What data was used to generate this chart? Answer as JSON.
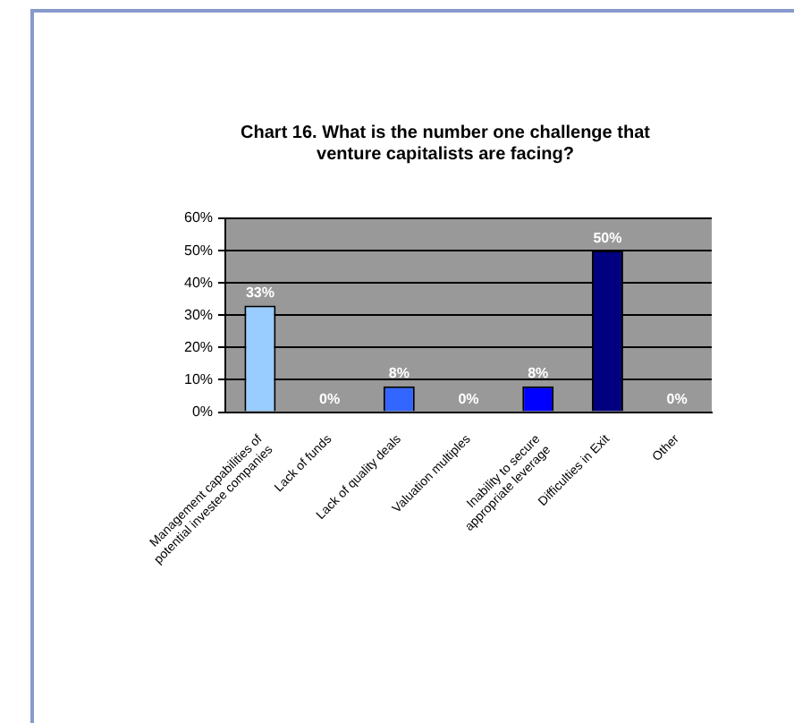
{
  "chart_data": {
    "type": "bar",
    "title": "Chart 16. What is the number one challenge that venture capitalists are facing?",
    "categories": [
      "Management capabilities of potential investee companies",
      "Lack of funds",
      "Lack of quality deals",
      "Valuation multiples",
      "Inability to secure appropriate leverage",
      "Difficulties in Exit",
      "Other"
    ],
    "values": [
      33,
      0,
      8,
      0,
      8,
      50,
      0
    ],
    "colors": [
      "#99ccff",
      "#99ccff",
      "#3366ff",
      "#3366ff",
      "#0000ff",
      "#000080",
      "#000080"
    ],
    "value_labels": [
      "33%",
      "0%",
      "8%",
      "0%",
      "8%",
      "50%",
      "0%"
    ],
    "ylim": [
      0,
      60
    ],
    "yticks": [
      {
        "value": 0,
        "label": "0%"
      },
      {
        "value": 10,
        "label": "10%"
      },
      {
        "value": 20,
        "label": "20%"
      },
      {
        "value": 30,
        "label": "30%"
      },
      {
        "value": 40,
        "label": "40%"
      },
      {
        "value": 50,
        "label": "50%"
      },
      {
        "value": 60,
        "label": "60%"
      }
    ],
    "grid": "y",
    "legend": false
  }
}
